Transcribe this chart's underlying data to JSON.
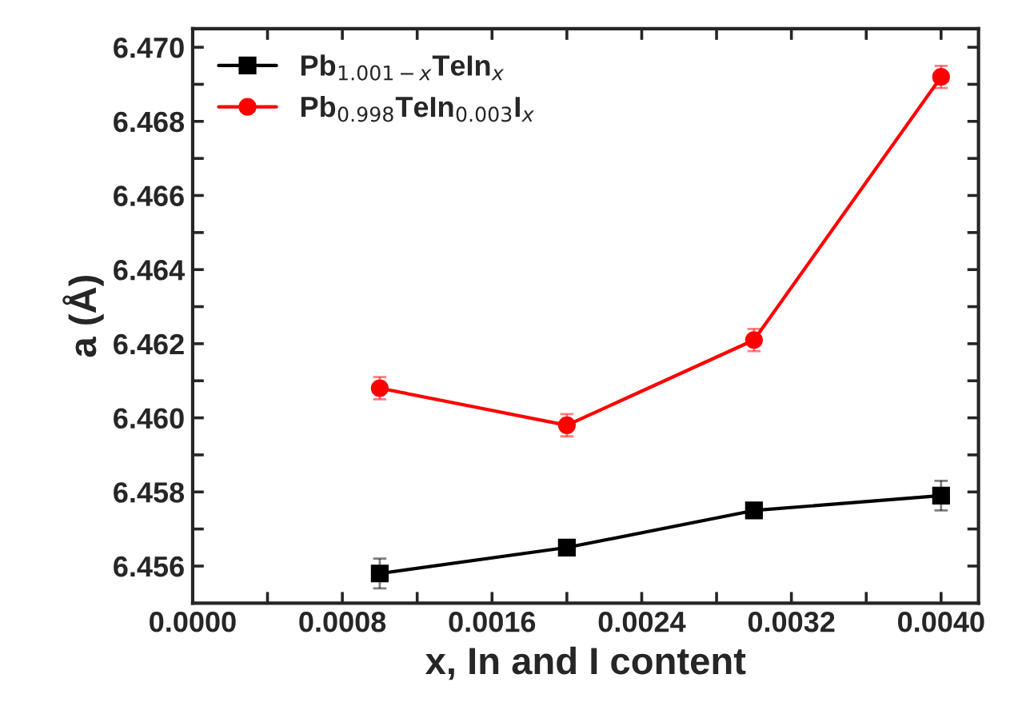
{
  "chart_data": {
    "type": "line",
    "xlabel": "x, In and I content",
    "ylabel": "a (Å)",
    "xlim": [
      0.0,
      0.0042
    ],
    "xticks": [
      {
        "value": 0.0,
        "label": "0.0000"
      },
      {
        "value": 0.0004,
        "label": null
      },
      {
        "value": 0.0008,
        "label": "0.0008"
      },
      {
        "value": 0.0012,
        "label": null
      },
      {
        "value": 0.0016,
        "label": "0.0016"
      },
      {
        "value": 0.002,
        "label": null
      },
      {
        "value": 0.0024,
        "label": "0.0024"
      },
      {
        "value": 0.0028,
        "label": null
      },
      {
        "value": 0.0032,
        "label": "0.0032"
      },
      {
        "value": 0.0036,
        "label": null
      },
      {
        "value": 0.004,
        "label": "0.0040"
      }
    ],
    "ylim": [
      6.455,
      6.4705
    ],
    "yticks": [
      {
        "value": 6.456,
        "label": "6.456"
      },
      {
        "value": 6.457,
        "label": null
      },
      {
        "value": 6.458,
        "label": "6.458"
      },
      {
        "value": 6.459,
        "label": null
      },
      {
        "value": 6.46,
        "label": "6.460"
      },
      {
        "value": 6.461,
        "label": null
      },
      {
        "value": 6.462,
        "label": "6.462"
      },
      {
        "value": 6.463,
        "label": null
      },
      {
        "value": 6.464,
        "label": "6.464"
      },
      {
        "value": 6.465,
        "label": null
      },
      {
        "value": 6.466,
        "label": "6.466"
      },
      {
        "value": 6.467,
        "label": null
      },
      {
        "value": 6.468,
        "label": "6.468"
      },
      {
        "value": 6.469,
        "label": null
      },
      {
        "value": 6.47,
        "label": "6.470"
      }
    ],
    "x": [
      0.001,
      0.002,
      0.003,
      0.004
    ],
    "legend": "top left",
    "grid": false,
    "series": [
      {
        "name": "Pb$_{1.001−x}$TeIn$_{x}$",
        "color": "#000000",
        "marker": "square",
        "values": [
          6.4558,
          6.4565,
          6.4575,
          6.4579
        ],
        "errors": [
          0.0004,
          0.0002,
          0.0002,
          0.0004
        ]
      },
      {
        "name": "Pb$_{0.998}$TeIn$_{0.003}$I$_{x}$",
        "color": "#ff0000",
        "marker": "circle",
        "values": [
          6.4608,
          6.4598,
          6.4621,
          6.4692
        ],
        "errors": [
          0.0003,
          0.0003,
          0.0003,
          0.0003
        ]
      }
    ]
  }
}
